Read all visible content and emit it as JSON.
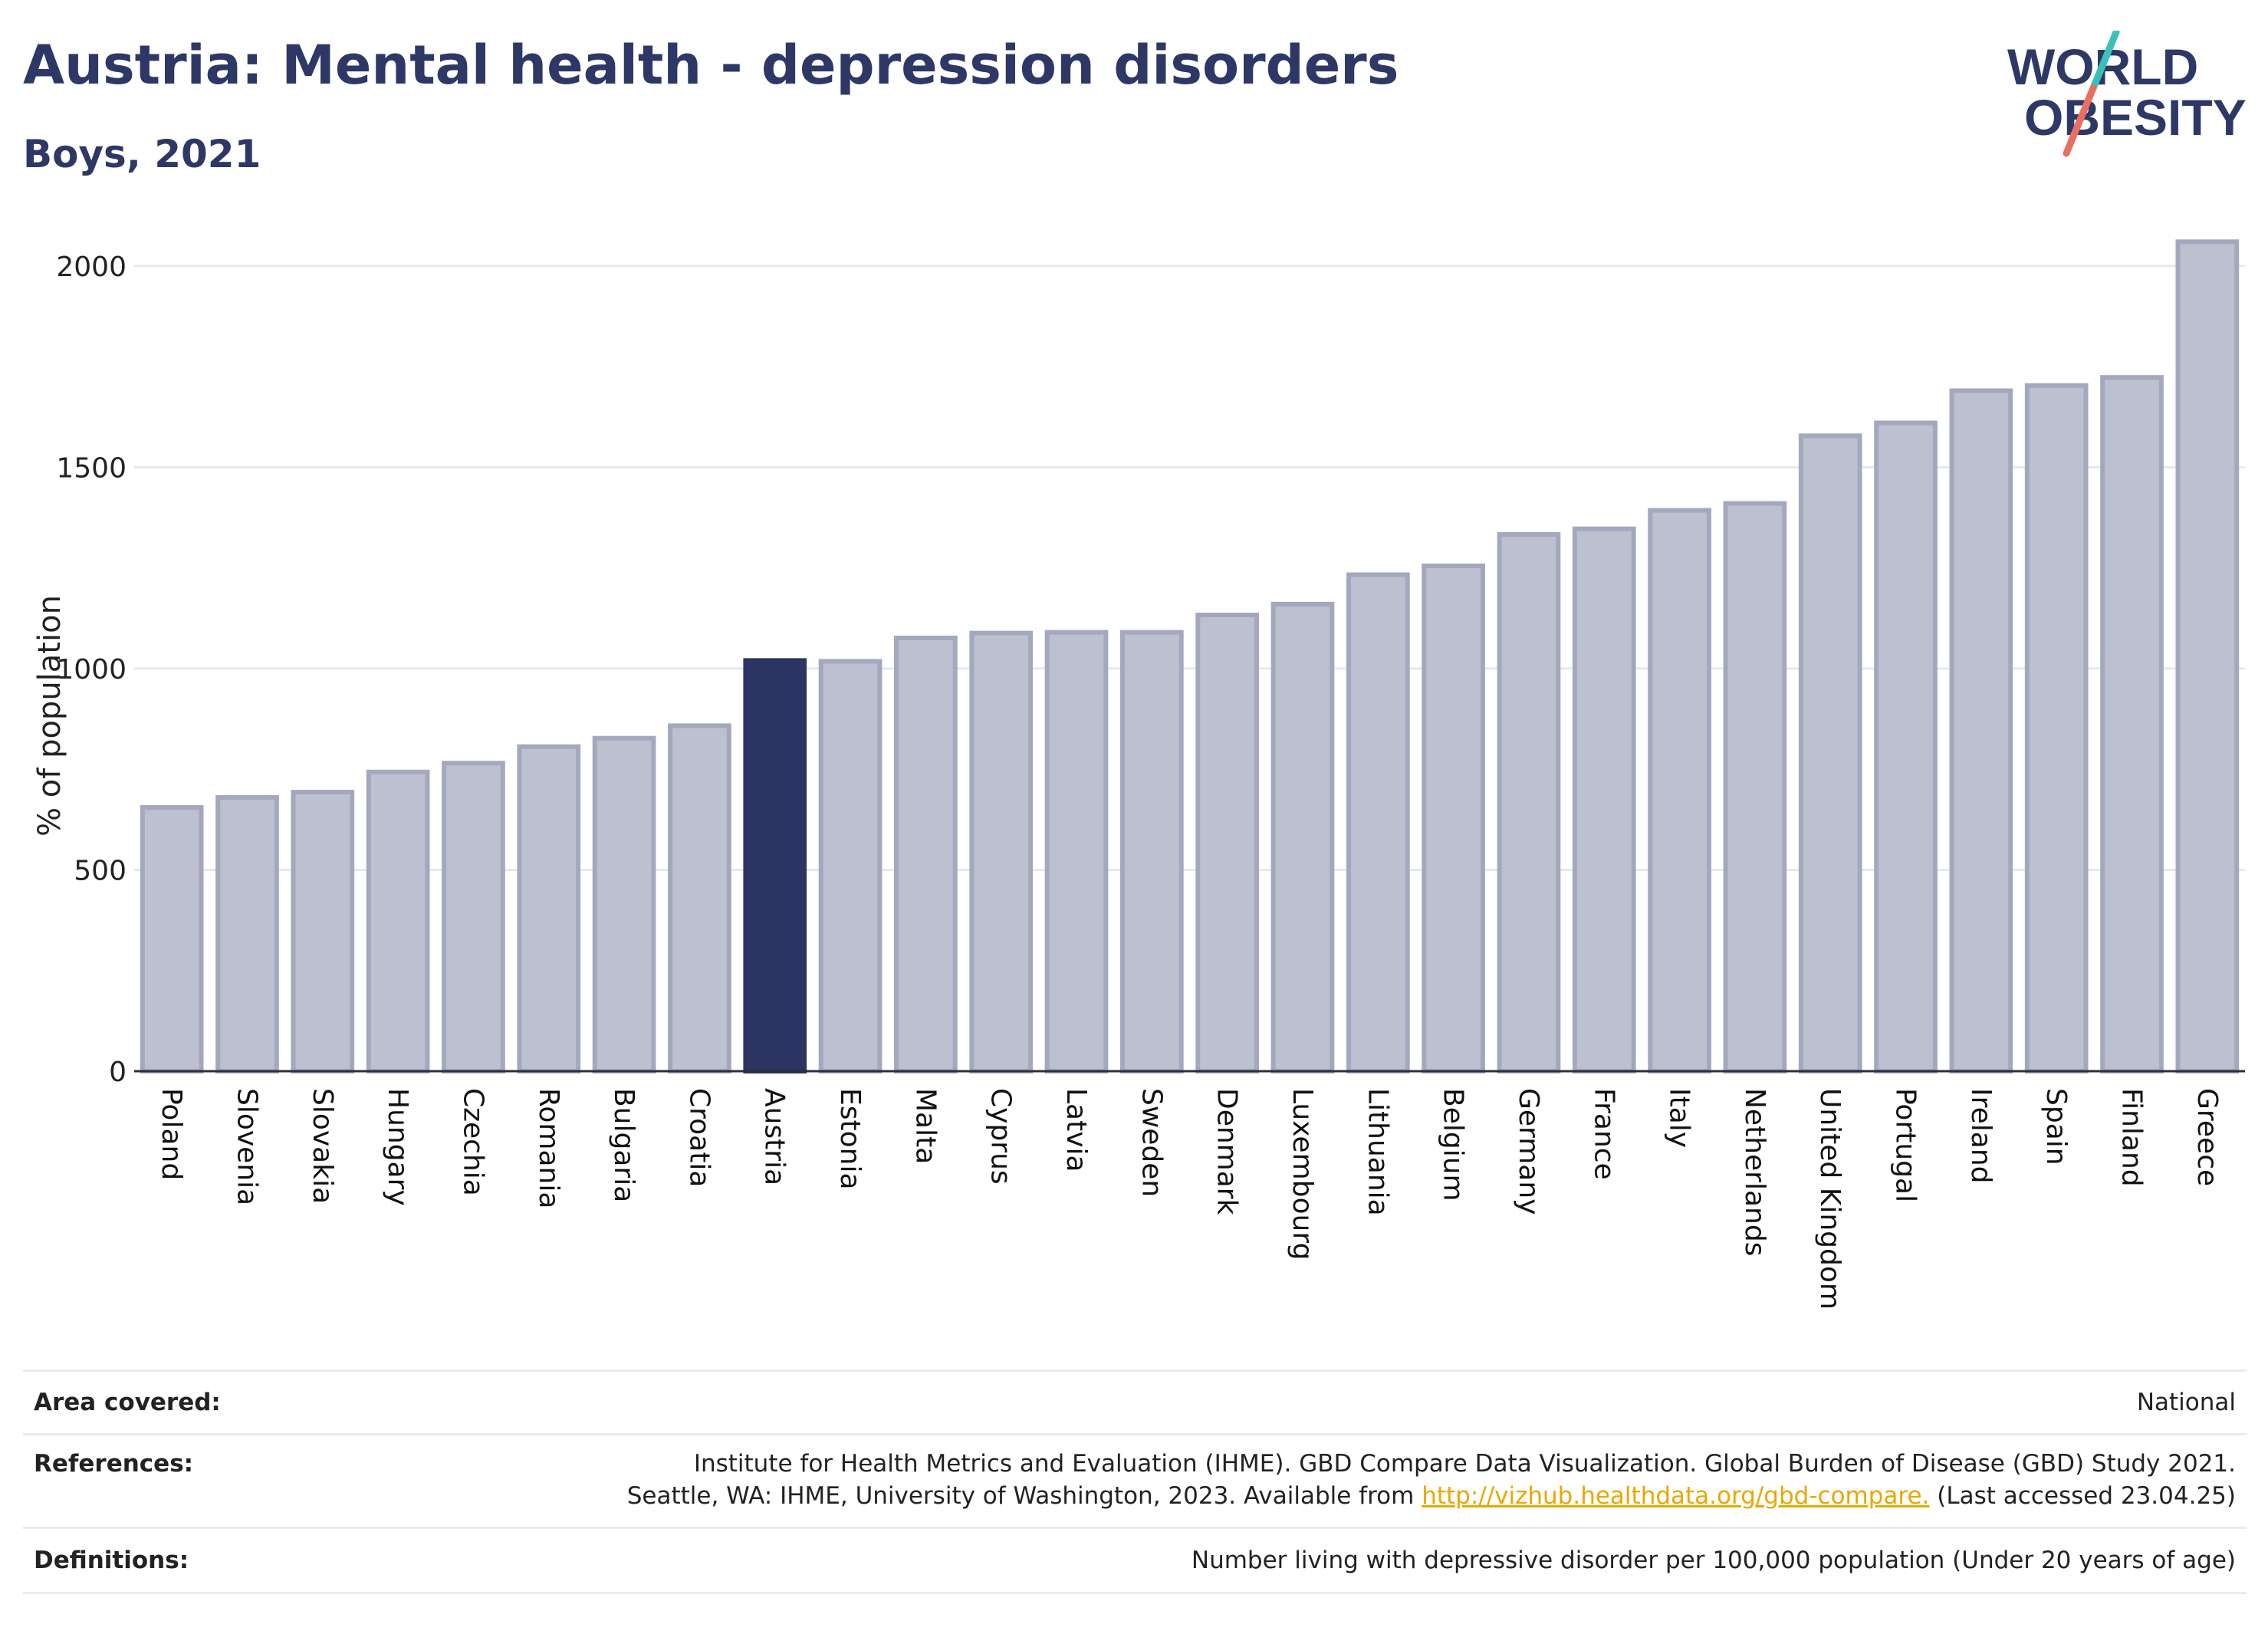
{
  "header": {
    "title": "Austria: Mental health - depression disorders",
    "subtitle": "Boys, 2021"
  },
  "logo": {
    "line1": "WORLD",
    "line2": "OBESITY"
  },
  "colors": {
    "highlight": "#2c3561",
    "bar_fill": "#bcc0cf",
    "bar_stroke": "#a3a8be",
    "grid": "#e6e8ef",
    "logo_text": "#2d3866",
    "logo_slash_teal": "#3bbfb9",
    "logo_slash_coral": "#e8705f",
    "link": "#e8a800"
  },
  "chart_data": {
    "type": "bar",
    "ylabel": "% of population",
    "ylim": [
      0,
      2070
    ],
    "yticks": [
      0,
      500,
      1000,
      1500,
      2000
    ],
    "highlight": "Austria",
    "grid": true,
    "categories": [
      "Poland",
      "Slovenia",
      "Slovakia",
      "Hungary",
      "Czechia",
      "Romania",
      "Bulgaria",
      "Croatia",
      "Austria",
      "Estonia",
      "Malta",
      "Cyprus",
      "Latvia",
      "Sweden",
      "Denmark",
      "Luxembourg",
      "Lithuania",
      "Belgium",
      "Germany",
      "France",
      "Italy",
      "Netherlands",
      "United Kingdom",
      "Portugal",
      "Ireland",
      "Spain",
      "Finland",
      "Greece"
    ],
    "values": [
      655,
      680,
      693,
      743,
      765,
      806,
      827,
      858,
      1020,
      1018,
      1076,
      1088,
      1090,
      1090,
      1133,
      1160,
      1233,
      1255,
      1333,
      1347,
      1393,
      1410,
      1578,
      1610,
      1690,
      1703,
      1723,
      2060
    ]
  },
  "meta": {
    "area": {
      "label": "Area covered:",
      "value": "National"
    },
    "references": {
      "label": "References:",
      "line1": "Institute for Health Metrics and Evaluation (IHME). GBD Compare Data Visualization. Global Burden of Disease (GBD) Study 2021.",
      "line2_before": "Seattle, WA: IHME, University of Washington, 2023. Available from ",
      "link": "http://vizhub.healthdata.org/gbd-compare.",
      "line2_after": " (Last accessed 23.04.25)"
    },
    "definitions": {
      "label": "Definitions:",
      "value": "Number living with depressive disorder per 100,000 population (Under 20 years of age)"
    }
  }
}
